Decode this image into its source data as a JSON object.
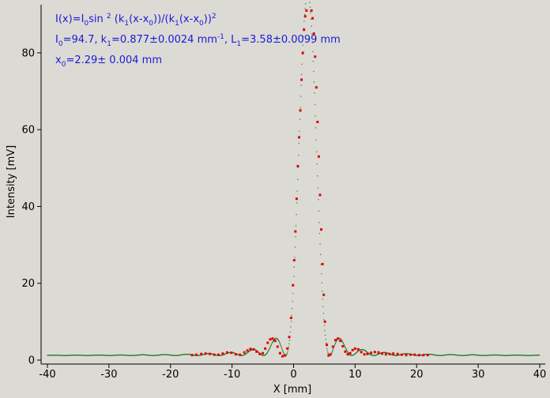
{
  "chart_data": {
    "type": "scatter",
    "xlabel": "X [mm]",
    "ylabel": "Intensity [mV]",
    "xlim": [
      -40,
      40
    ],
    "ylim": [
      -1,
      95
    ],
    "xticks": [
      -40,
      -30,
      -20,
      -10,
      0,
      10,
      20,
      30,
      40
    ],
    "yticks": [
      0,
      20,
      40,
      60,
      80
    ],
    "grid": false,
    "fit_params": {
      "I0": 94.7,
      "k1": 0.877,
      "x0": 2.29,
      "offset": 1.2
    },
    "annotations": {
      "line1": {
        "a": "I(x)=I",
        "a_sub": "0",
        "b": "sin ",
        "b_sup": "2",
        "c": " (k",
        "c_sub": "1",
        "d": "(x-x",
        "d_sub": "0",
        "e": "))/(k",
        "e_sub": "1",
        "f": "(x-x",
        "f_sub": "0",
        "g": "))",
        "g_sup": "2"
      },
      "line2": {
        "a": "I",
        "a_sub": "0",
        "b": "=94.7,  k",
        "b_sub": "1",
        "c": "=0.877±0.0024 mm",
        "c_sup": "-1",
        "d": ",   L",
        "d_sub": "1",
        "e": "=3.58±0.0099 mm"
      },
      "line3": {
        "a": "x",
        "a_sub": "0",
        "b": "=2.29±   0.004 mm"
      }
    },
    "series": [
      {
        "role": "measured",
        "color": "#e00000",
        "x": [
          -16.5,
          -15.8,
          -15.0,
          -14.3,
          -13.6,
          -12.9,
          -12.2,
          -11.5,
          -10.8,
          -10.1,
          -9.4,
          -8.7,
          -8.0,
          -7.5,
          -7.0,
          -6.5,
          -6.0,
          -5.5,
          -5.0,
          -4.6,
          -4.2,
          -3.8,
          -3.4,
          -3.0,
          -2.6,
          -2.2,
          -1.8,
          -1.4,
          -1.0,
          -0.7,
          -0.4,
          -0.1,
          0.1,
          0.3,
          0.5,
          0.7,
          0.9,
          1.1,
          1.3,
          1.5,
          1.7,
          1.9,
          2.1,
          2.9,
          3.1,
          3.3,
          3.5,
          3.7,
          3.9,
          4.1,
          4.3,
          4.5,
          4.7,
          4.9,
          5.1,
          5.4,
          5.7,
          6.0,
          6.4,
          6.8,
          7.2,
          7.6,
          8.0,
          8.4,
          8.8,
          9.2,
          9.6,
          10.0,
          10.5,
          11.0,
          11.5,
          12.0,
          12.6,
          13.2,
          13.8,
          14.4,
          15.0,
          15.6,
          16.2,
          16.9,
          17.6,
          18.3,
          19.0,
          19.7,
          20.4,
          21.1,
          21.8
        ],
        "values": [
          1.3,
          1.4,
          1.6,
          1.7,
          1.6,
          1.4,
          1.4,
          1.7,
          2.0,
          1.9,
          1.5,
          1.4,
          2.0,
          2.5,
          2.9,
          2.8,
          2.2,
          1.6,
          1.8,
          3.0,
          4.5,
          5.4,
          5.6,
          5.0,
          3.5,
          1.8,
          1.0,
          1.2,
          3.0,
          6.0,
          11.0,
          19.5,
          26.0,
          33.5,
          42.0,
          50.5,
          58.0,
          65.0,
          73.0,
          80.0,
          86.0,
          89.5,
          91.0,
          91.0,
          89.0,
          85.0,
          79.0,
          71.0,
          62.0,
          53.0,
          43.0,
          34.0,
          25.0,
          17.0,
          10.0,
          4.0,
          1.2,
          1.5,
          3.5,
          5.2,
          5.6,
          5.0,
          3.6,
          2.2,
          1.5,
          1.8,
          2.6,
          3.0,
          2.8,
          2.1,
          1.5,
          1.6,
          1.9,
          2.1,
          2.0,
          1.7,
          1.5,
          1.6,
          1.7,
          1.6,
          1.4,
          1.3,
          1.4,
          1.4,
          1.3,
          1.3,
          1.3
        ]
      },
      {
        "role": "fit",
        "color": "#1e7a1e",
        "x_range": [
          -40,
          40
        ],
        "x0": 2.29,
        "scale": 94.7,
        "k": 0.877,
        "offset": 1.2
      }
    ]
  }
}
